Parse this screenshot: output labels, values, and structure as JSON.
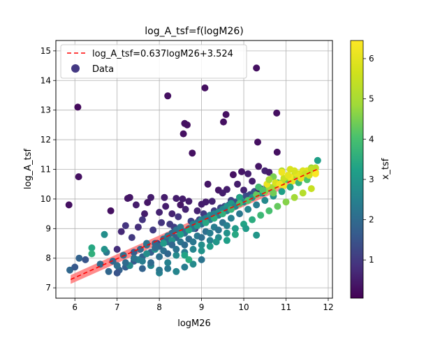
{
  "chart_data": {
    "type": "scatter",
    "title": "log_A_tsf=f(logM26)",
    "xlabel": "logM26",
    "ylabel": "log_A_tsf",
    "xlim": [
      5.55,
      12.1
    ],
    "ylim": [
      6.65,
      15.35
    ],
    "xticks": [
      6,
      7,
      8,
      9,
      10,
      11,
      12
    ],
    "yticks": [
      7,
      8,
      9,
      10,
      11,
      12,
      13,
      14,
      15
    ],
    "grid": true,
    "legend_position": "top-left",
    "legend": [
      {
        "label": "log_A_tsf=0.637logM26+3.524",
        "kind": "line",
        "color": "#ff0000"
      },
      {
        "label": "Data",
        "kind": "marker",
        "color": "#443983"
      }
    ],
    "fit": {
      "slope": 0.637,
      "intercept": 3.524,
      "x_range": [
        5.9,
        11.75
      ],
      "band_halfwidth": 0.15,
      "color": "#ff0000",
      "band_color": "#ff8080"
    },
    "colorbar": {
      "label": "x_tsf",
      "min": 0.05,
      "max": 6.45,
      "ticks": [
        1,
        2,
        3,
        4,
        5,
        6
      ],
      "colormap": "viridis"
    },
    "series": [
      {
        "name": "Data",
        "x": [
          5.86,
          5.88,
          6.07,
          6.09,
          6.85,
          6.7,
          8.2,
          9.08,
          8.6,
          8.66,
          8.57,
          8.78,
          9.58,
          9.52,
          10.3,
          10.33,
          10.78,
          10.79,
          7.25,
          7.3,
          7.45,
          7.65,
          7.72,
          7.8,
          8.0,
          8.12,
          8.15,
          8.3,
          8.4,
          8.5,
          8.55,
          8.62,
          8.7,
          8.9,
          9.0,
          9.1,
          9.15,
          9.25,
          9.4,
          9.5,
          9.6,
          9.75,
          9.85,
          9.95,
          10.0,
          10.1,
          10.2,
          10.35,
          10.5,
          10.6,
          7.0,
          7.1,
          7.2,
          7.35,
          7.5,
          7.6,
          7.85,
          7.95,
          8.05,
          8.25,
          8.35,
          8.45,
          8.75,
          8.85,
          8.95,
          9.05,
          9.2,
          9.3,
          9.45,
          9.55,
          9.65,
          9.7,
          9.8,
          9.9,
          10.05,
          10.15,
          10.25,
          10.4,
          10.45,
          10.55,
          6.0,
          6.1,
          6.25,
          6.4,
          6.6,
          6.75,
          6.9,
          7.05,
          7.15,
          7.4,
          7.55,
          7.7,
          7.9,
          8.1,
          8.2,
          8.3,
          8.4,
          8.5,
          8.6,
          8.7,
          8.8,
          8.9,
          9.0,
          9.1,
          9.2,
          9.3,
          9.4,
          9.5,
          9.6,
          9.7,
          7.0,
          7.2,
          7.4,
          7.6,
          7.8,
          8.0,
          8.2,
          8.4,
          8.6,
          8.8,
          9.0,
          9.2,
          9.4,
          9.6,
          9.8,
          10.0,
          10.2,
          10.4,
          10.6,
          10.8,
          11.0,
          11.2,
          11.4,
          11.6,
          11.75,
          10.7,
          10.9,
          11.1,
          11.3,
          11.5,
          11.7,
          10.8,
          11.0,
          11.2,
          11.4,
          11.6,
          10.95,
          11.15,
          11.35,
          11.55,
          11.7,
          10.6,
          10.75,
          9.9,
          10.3,
          6.4,
          6.7,
          7.3,
          7.5,
          7.7,
          7.9,
          8.1,
          8.3,
          8.5,
          8.7,
          8.9,
          9.1,
          9.3,
          9.5,
          9.7,
          9.9,
          10.1,
          10.3,
          10.5,
          10.7,
          10.9,
          11.1,
          11.3,
          11.5,
          8.0,
          8.2,
          8.4,
          8.6,
          8.8,
          9.0,
          7.6,
          7.8,
          8.0,
          8.2,
          8.4,
          8.6,
          8.8,
          9.0,
          9.2,
          9.4,
          9.6,
          9.8,
          10.0,
          10.2,
          10.4,
          10.6,
          10.8,
          11.0,
          11.2,
          11.4,
          11.6,
          7.7,
          7.9,
          8.1,
          8.3,
          8.5,
          8.7,
          8.9,
          9.1,
          9.3,
          9.5,
          9.7,
          9.9,
          10.1,
          10.3,
          10.5,
          10.7,
          10.9,
          11.1,
          11.3,
          11.5,
          6.8,
          7.0,
          7.2,
          7.4,
          7.6,
          7.8,
          8.0,
          8.2,
          8.4,
          8.6,
          8.8,
          9.0,
          9.2,
          9.4,
          9.6,
          8.6,
          8.7,
          9.0,
          9.2,
          9.35,
          9.6,
          9.8,
          10.05,
          10.35,
          10.55,
          10.75,
          10.95,
          11.1,
          11.25,
          11.4,
          11.55,
          11.7,
          10.35,
          10.45,
          10.6,
          10.7,
          10.85,
          10.9,
          11.05,
          11.2,
          11.35,
          11.45,
          11.6
        ],
        "y": [
          9.8,
          7.6,
          13.1,
          10.75,
          9.6,
          8.8,
          13.48,
          13.75,
          12.55,
          12.5,
          12.2,
          11.55,
          12.85,
          12.6,
          14.42,
          11.92,
          12.9,
          11.58,
          10.02,
          10.05,
          9.8,
          9.5,
          9.88,
          10.05,
          9.55,
          10.05,
          9.75,
          9.5,
          10.02,
          9.8,
          10.0,
          9.65,
          9.92,
          9.6,
          9.82,
          9.9,
          10.5,
          9.92,
          10.3,
          10.2,
          10.32,
          10.82,
          10.5,
          10.92,
          10.3,
          10.85,
          10.6,
          11.1,
          10.95,
          10.9,
          8.3,
          8.9,
          9.1,
          8.7,
          9.05,
          9.3,
          8.95,
          8.5,
          9.2,
          9.15,
          9.05,
          9.4,
          9.25,
          9.0,
          9.3,
          9.5,
          9.45,
          9.6,
          9.7,
          9.75,
          9.8,
          9.95,
          9.9,
          10.05,
          10.1,
          10.15,
          10.25,
          10.35,
          10.2,
          10.45,
          7.7,
          8.0,
          7.95,
          8.35,
          7.8,
          8.2,
          7.9,
          7.6,
          8.1,
          8.2,
          8.3,
          8.45,
          8.5,
          8.65,
          8.75,
          8.85,
          8.95,
          9.05,
          8.9,
          9.0,
          9.15,
          9.2,
          9.3,
          9.35,
          9.45,
          9.5,
          9.55,
          9.65,
          9.75,
          9.85,
          7.5,
          7.7,
          7.9,
          8.05,
          8.2,
          8.4,
          8.55,
          8.7,
          8.85,
          9.0,
          9.15,
          9.3,
          9.45,
          9.6,
          9.75,
          9.9,
          10.05,
          10.2,
          10.35,
          10.5,
          10.65,
          10.8,
          10.95,
          11.05,
          11.3,
          10.75,
          10.95,
          11.0,
          10.85,
          10.95,
          11.05,
          10.55,
          10.7,
          10.8,
          10.9,
          11.0,
          10.45,
          10.6,
          10.75,
          10.85,
          10.9,
          10.4,
          10.45,
          10.05,
          8.78,
          8.15,
          8.3,
          7.75,
          7.95,
          8.15,
          8.3,
          8.5,
          8.6,
          8.8,
          8.95,
          9.1,
          9.2,
          9.35,
          9.5,
          9.65,
          9.85,
          9.95,
          10.15,
          10.25,
          10.4,
          10.55,
          10.7,
          10.85,
          10.95,
          7.5,
          7.65,
          7.55,
          7.7,
          7.8,
          7.95,
          7.9,
          7.75,
          7.6,
          7.85,
          8.1,
          8.2,
          8.3,
          8.45,
          8.6,
          8.7,
          8.85,
          9.0,
          9.15,
          9.3,
          9.45,
          9.6,
          9.75,
          9.9,
          10.05,
          10.2,
          10.35,
          8.5,
          8.35,
          8.25,
          8.45,
          8.55,
          8.65,
          8.75,
          8.9,
          9.05,
          9.2,
          9.35,
          9.5,
          9.65,
          9.8,
          9.95,
          10.1,
          10.25,
          10.4,
          10.55,
          10.65,
          7.55,
          7.75,
          7.85,
          8.0,
          7.65,
          7.85,
          8.05,
          8.15,
          8.3,
          8.45,
          8.55,
          8.7,
          8.85,
          8.95,
          9.1,
          8.1,
          7.95,
          8.25,
          8.4,
          8.55,
          8.6,
          8.8,
          9.0,
          10.35,
          10.5,
          10.55,
          10.7,
          10.75,
          10.85,
          10.95,
          10.8,
          10.85,
          10.4,
          10.3,
          10.65,
          10.2,
          10.5,
          10.9,
          10.8,
          10.95,
          10.7,
          10.85,
          11.0
        ],
        "c": [
          0.3,
          1.9,
          0.2,
          0.3,
          0.3,
          2.8,
          0.3,
          0.3,
          0.3,
          0.3,
          0.3,
          0.3,
          0.3,
          0.3,
          0.3,
          0.3,
          0.3,
          0.3,
          0.4,
          0.4,
          0.5,
          0.5,
          0.4,
          0.5,
          0.6,
          0.5,
          0.5,
          0.6,
          0.5,
          0.4,
          0.5,
          0.6,
          0.5,
          0.6,
          0.5,
          0.5,
          0.4,
          0.6,
          0.4,
          0.5,
          0.5,
          0.3,
          0.5,
          0.4,
          0.6,
          0.5,
          0.5,
          0.4,
          0.6,
          0.5,
          0.8,
          0.7,
          0.9,
          1.0,
          0.8,
          0.9,
          1.0,
          1.1,
          0.9,
          1.0,
          1.1,
          0.9,
          1.2,
          1.0,
          1.1,
          1.0,
          1.2,
          1.1,
          1.2,
          1.3,
          1.2,
          1.1,
          1.3,
          1.2,
          1.4,
          1.3,
          1.5,
          1.4,
          1.6,
          1.5,
          1.6,
          1.8,
          1.5,
          3.4,
          2.0,
          2.3,
          1.9,
          1.8,
          2.1,
          1.7,
          2.0,
          2.2,
          1.9,
          2.1,
          2.3,
          2.0,
          2.2,
          2.4,
          2.1,
          2.3,
          2.5,
          2.2,
          2.6,
          2.4,
          2.7,
          2.5,
          2.8,
          2.6,
          2.9,
          3.0,
          1.5,
          1.7,
          1.6,
          1.8,
          1.7,
          1.9,
          2.0,
          1.8,
          2.1,
          2.2,
          2.0,
          2.3,
          2.4,
          2.5,
          2.6,
          2.7,
          3.0,
          3.2,
          3.5,
          3.8,
          4.2,
          4.6,
          5.0,
          4.8,
          3.2,
          4.5,
          5.2,
          5.8,
          5.5,
          6.0,
          5.3,
          3.8,
          4.2,
          4.8,
          5.3,
          5.6,
          6.3,
          6.1,
          5.6,
          5.2,
          5.9,
          4.9,
          6.2,
          3.3,
          3.0,
          3.6,
          2.9,
          2.7,
          2.5,
          2.8,
          3.0,
          3.1,
          2.9,
          3.2,
          3.3,
          3.1,
          3.4,
          3.5,
          3.6,
          3.7,
          3.9,
          4.1,
          4.3,
          4.6,
          4.9,
          5.2,
          5.5,
          5.7,
          5.9,
          2.5,
          2.3,
          2.6,
          2.4,
          2.7,
          2.2,
          2.4,
          2.6,
          2.3,
          2.5,
          2.7,
          2.4,
          2.6,
          2.8,
          2.5,
          2.7,
          2.9,
          3.1,
          3.3,
          3.5,
          3.8,
          4.0,
          4.3,
          4.6,
          4.9,
          5.2,
          5.5,
          2.2,
          2.0,
          2.1,
          1.9,
          2.2,
          2.0,
          2.3,
          2.1,
          2.4,
          2.2,
          2.5,
          2.3,
          2.6,
          2.4,
          2.7,
          2.9,
          3.2,
          3.5,
          3.8,
          4.1,
          1.9,
          2.1,
          2.0,
          2.2,
          1.8,
          2.0,
          2.1,
          1.9,
          2.2,
          2.0,
          2.3,
          2.1,
          2.4,
          2.2,
          2.5,
          3.3,
          3.5,
          2.9,
          3.1,
          3.0,
          3.2,
          3.4,
          3.1,
          0.6,
          6.1,
          5.8,
          5.5,
          6.3,
          6.0,
          5.9,
          5.7,
          6.4,
          3.9,
          4.1,
          5.0,
          4.4,
          6.2,
          6.2,
          6.0,
          5.8,
          6.1,
          5.6,
          5.4
        ]
      }
    ]
  }
}
